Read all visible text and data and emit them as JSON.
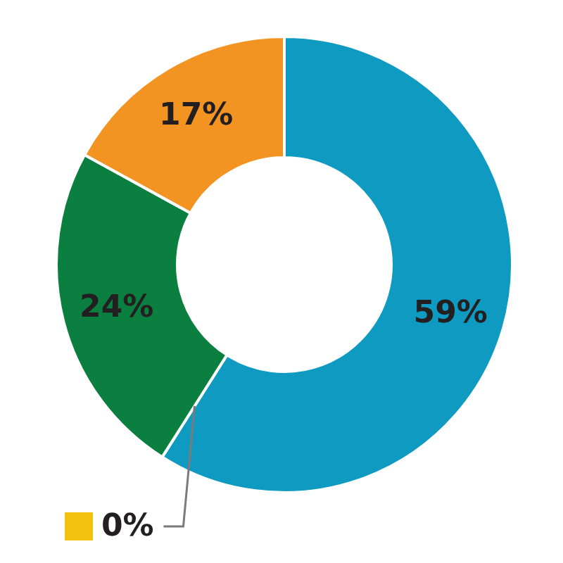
{
  "chart_data": {
    "type": "donut",
    "categories": [
      null,
      null,
      null,
      null
    ],
    "values": [
      59,
      0,
      24,
      17
    ],
    "colors": [
      "#0f9bc1",
      "#f5c10f",
      "#0a7f3f",
      "#f39322"
    ],
    "value_labels": [
      "59%",
      "0%",
      "24%",
      "17%"
    ]
  }
}
